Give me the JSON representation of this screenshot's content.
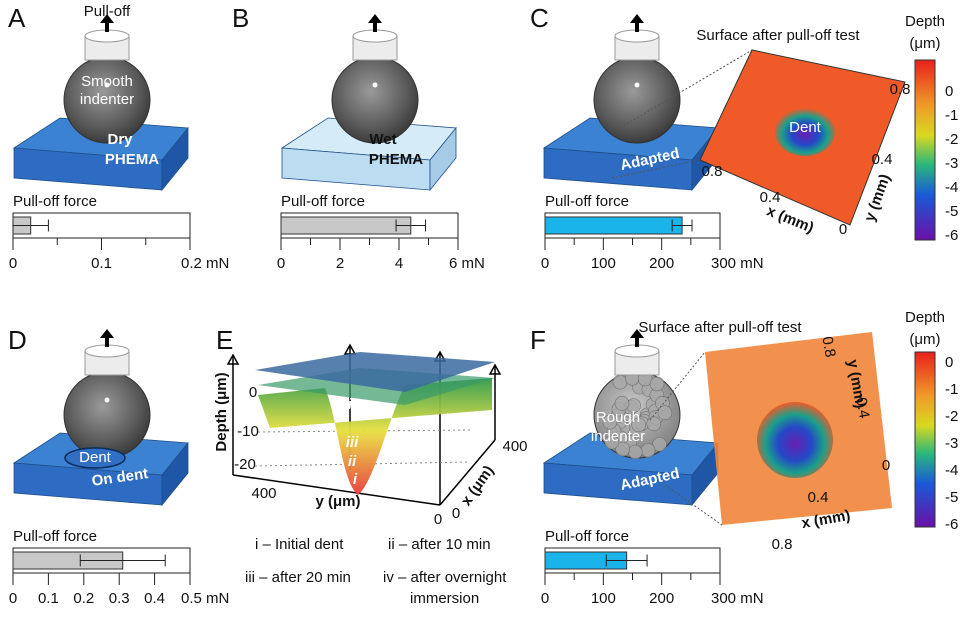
{
  "panel_labels": [
    "A",
    "B",
    "C",
    "D",
    "E",
    "F"
  ],
  "A": {
    "pull_off": "Pull-off",
    "indenter_lines": [
      "Smooth",
      "indenter"
    ],
    "substrate_lines": [
      "Dry",
      "PHEMA"
    ]
  },
  "B": {
    "substrate_lines": [
      "Wet",
      "PHEMA"
    ]
  },
  "C": {
    "substrate": "Adapted",
    "surface_title": "Surface after pull-off test",
    "dent": "Dent",
    "colorbar_title": [
      "Depth",
      "(μm)"
    ],
    "colorbar_ticks": [
      0,
      -1,
      -2,
      -3,
      -4,
      -5,
      -6
    ],
    "x_axis": "x (mm)",
    "y_axis": "y (mm)",
    "x_ticks": [
      0.8,
      0.4
    ],
    "y_ticks": [
      0,
      0.4,
      0.8
    ]
  },
  "D": {
    "dent": "Dent",
    "substrate": "On dent"
  },
  "E": {
    "z_axis": "Depth (μm)",
    "z_ticks": [
      0,
      -10,
      -20
    ],
    "y_axis": "y (μm)",
    "y_ticks": [
      400,
      0
    ],
    "x_axis": "x (μm)",
    "x_ticks": [
      0,
      400
    ],
    "layers": [
      "iv",
      "iii",
      "ii",
      "i"
    ],
    "legend": [
      "i – Initial dent",
      "ii – after 10 min",
      "iii – after 20 min",
      "iv – after overnight",
      "immersion"
    ]
  },
  "F": {
    "indenter_lines": [
      "Rough",
      "indenter"
    ],
    "substrate": "Adapted",
    "surface_title": "Surface after pull-off test",
    "colorbar_title": [
      "Depth",
      "(μm)"
    ],
    "colorbar_ticks": [
      0,
      -1,
      -2,
      -3,
      -4,
      -5,
      -6
    ],
    "x_axis": "x (mm)",
    "y_axis": "y (mm)",
    "y_ticks": [
      0.8,
      0.4,
      0
    ],
    "x_ticks": [
      0.4,
      0.8
    ]
  },
  "chart_data": [
    {
      "type": "bar",
      "title": "Pull-off force",
      "values": [
        0.02
      ],
      "errors": [
        0.02
      ],
      "color": "#c8c8c8",
      "xlim": [
        0,
        0.2
      ],
      "xticks": [
        0,
        0.1,
        {
          "value": 0.2,
          "label": "0.2 mN"
        }
      ],
      "minor_xticks": [
        0.05,
        0.15
      ]
    },
    {
      "type": "bar",
      "title": "Pull-off force",
      "values": [
        4.4
      ],
      "errors": [
        0.5
      ],
      "color": "#c8c8c8",
      "xlim": [
        0,
        6
      ],
      "xticks": [
        0,
        2,
        4,
        {
          "value": 6,
          "label": "6 mN"
        }
      ],
      "minor_xticks": [
        1,
        3,
        5
      ]
    },
    {
      "type": "bar",
      "title": "Pull-off force",
      "values": [
        235
      ],
      "errors": [
        17
      ],
      "color": "#1ab4ea",
      "xlim": [
        0,
        300
      ],
      "xticks": [
        0,
        100,
        200,
        {
          "value": 300,
          "label": "300 mN"
        }
      ],
      "minor_xticks": [
        50,
        150,
        250
      ]
    },
    {
      "type": "bar",
      "title": "Pull-off force",
      "values": [
        0.31
      ],
      "errors": [
        0.12
      ],
      "color": "#c8c8c8",
      "xlim": [
        0,
        0.5
      ],
      "xticks": [
        0,
        0.1,
        0.2,
        0.3,
        0.4,
        {
          "value": 0.5,
          "label": "0.5 mN"
        }
      ],
      "minor_xticks": []
    },
    {
      "type": "bar",
      "title": "Pull-off force",
      "values": [
        140
      ],
      "errors": [
        35
      ],
      "color": "#1ab4ea",
      "xlim": [
        0,
        300
      ],
      "xticks": [
        0,
        100,
        200,
        {
          "value": 300,
          "label": "300 mN"
        }
      ],
      "minor_xticks": [
        50,
        150,
        250
      ]
    }
  ]
}
